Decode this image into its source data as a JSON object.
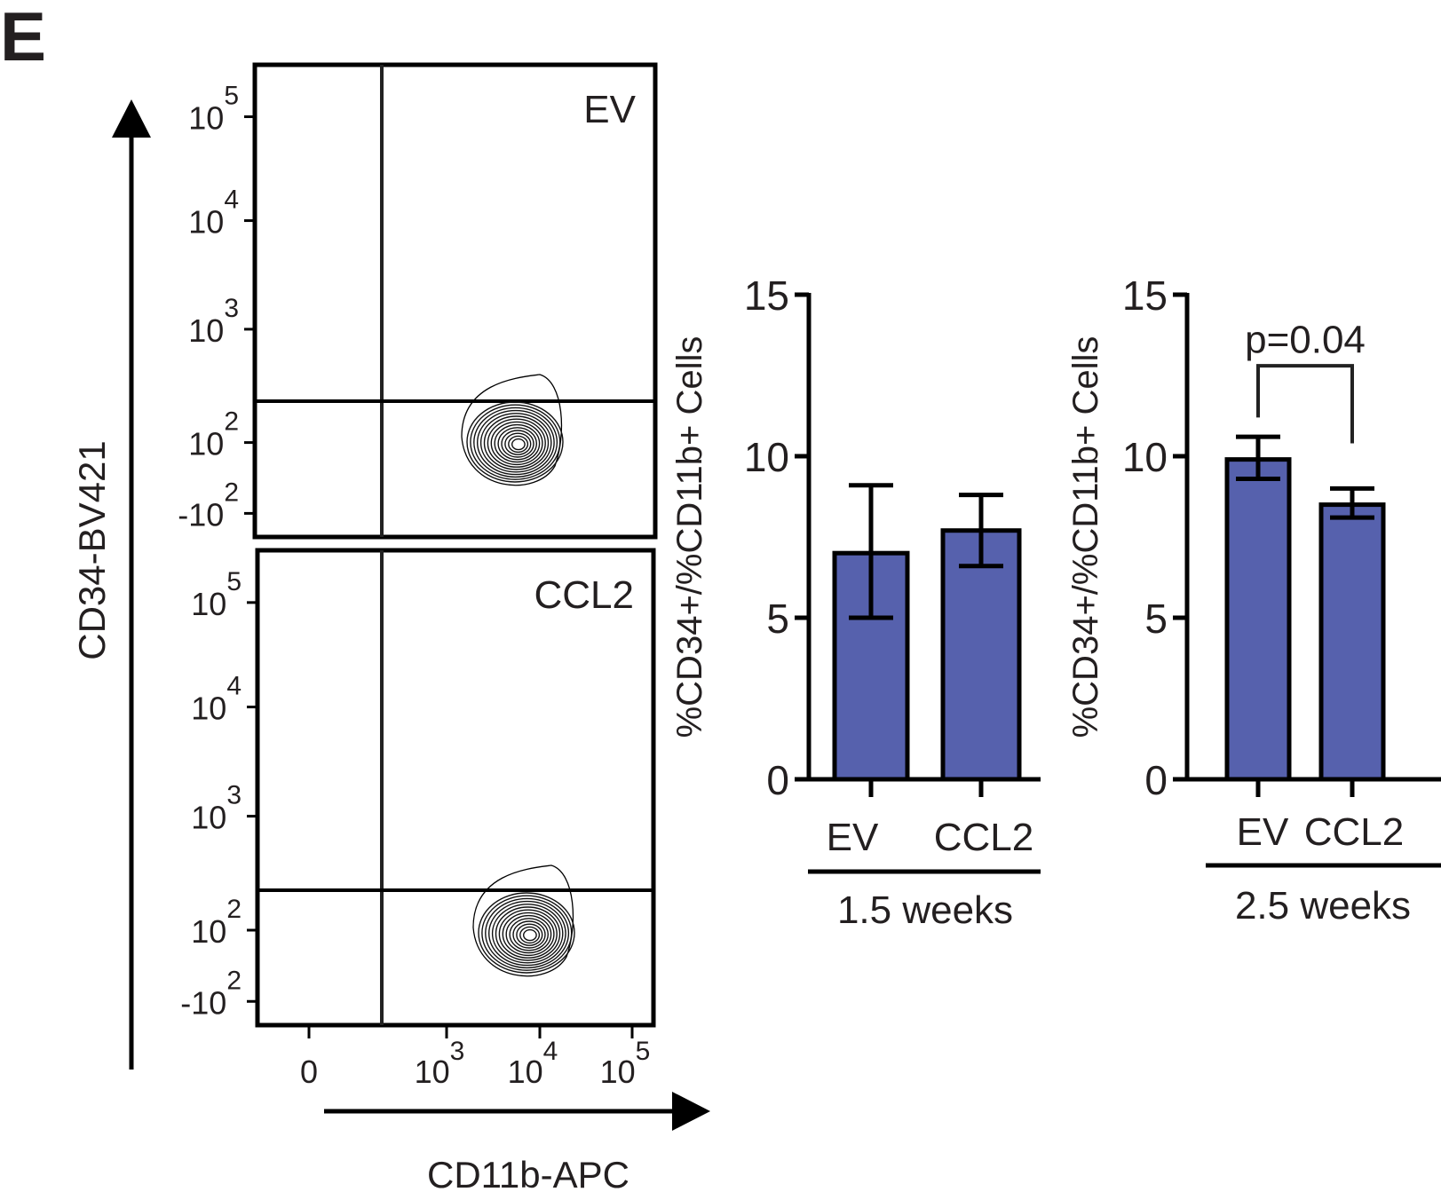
{
  "panel_label": "E",
  "chart_data": [
    {
      "type": "contour",
      "title": "",
      "xlabel": "CD11b-APC",
      "ylabel": "CD34-BV421",
      "x_scale": "biexponential",
      "y_scale": "biexponential",
      "x_ticks": [
        {
          "base": "0",
          "exp": ""
        },
        {
          "base": "10",
          "exp": "3"
        },
        {
          "base": "10",
          "exp": "4"
        },
        {
          "base": "10",
          "exp": "5"
        }
      ],
      "y_ticks": [
        {
          "base": "10",
          "exp": "5"
        },
        {
          "base": "10",
          "exp": "4"
        },
        {
          "base": "10",
          "exp": "3"
        },
        {
          "base": "10",
          "exp": "2"
        },
        {
          "base": "-10",
          "exp": "2"
        }
      ],
      "panels": [
        {
          "label": "EV",
          "population": "CD11b+ CD34 low (lower-right quadrant)"
        },
        {
          "label": "CCL2",
          "population": "CD11b+ CD34 low (lower-right quadrant)"
        }
      ]
    },
    {
      "type": "bar",
      "ylabel": "%CD34+/%CD11b+ Cells",
      "group_label": "1.5 weeks",
      "categories": [
        "EV",
        "CCL2"
      ],
      "values": [
        7.0,
        7.7
      ],
      "error_low": [
        5.0,
        6.6
      ],
      "error_high": [
        9.1,
        8.8
      ],
      "ylim": [
        0,
        15
      ],
      "yticks": [
        "0",
        "5",
        "10",
        "15"
      ],
      "bar_color": "#5661ad"
    },
    {
      "type": "bar",
      "ylabel": "%CD34+/%CD11b+ Cells",
      "group_label": "2.5 weeks",
      "categories": [
        "EV",
        "CCL2"
      ],
      "values": [
        9.9,
        8.5
      ],
      "error_low": [
        9.3,
        8.1
      ],
      "error_high": [
        10.6,
        9.0
      ],
      "ylim": [
        0,
        15
      ],
      "yticks": [
        "0",
        "5",
        "10",
        "15"
      ],
      "bar_color": "#5661ad",
      "annotation": "p=0.04"
    }
  ]
}
